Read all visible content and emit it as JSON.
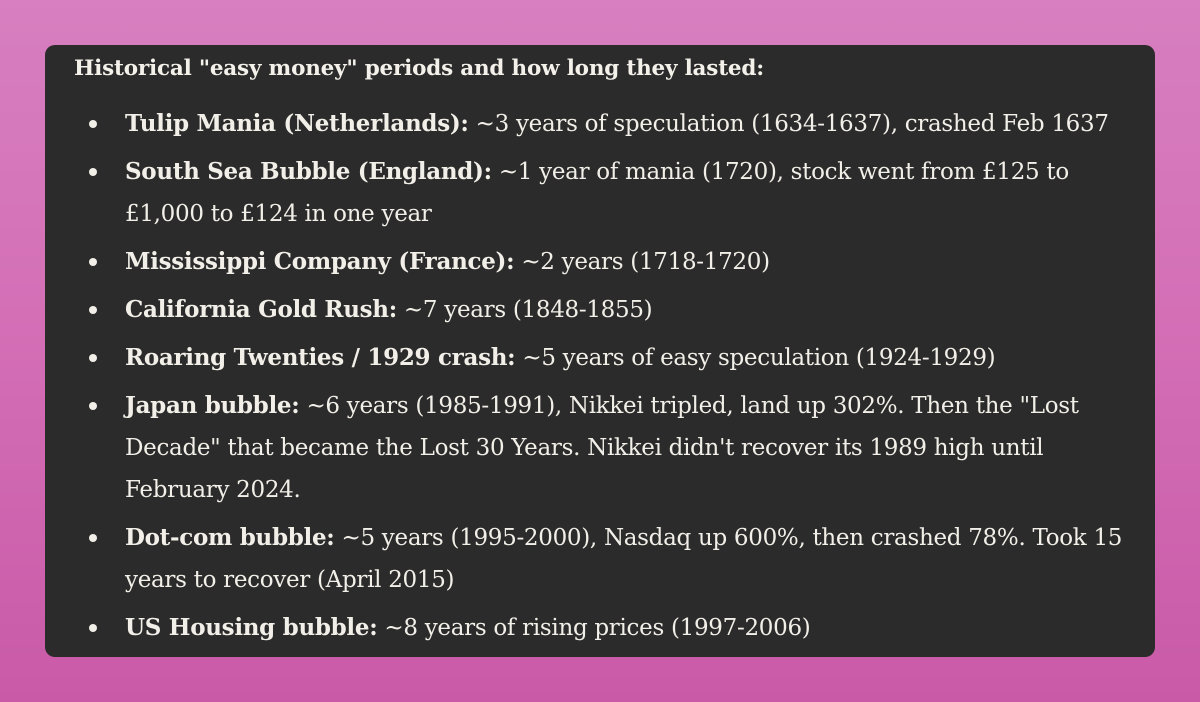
{
  "card": {
    "heading": "Historical \"easy money\" periods and how long they lasted:",
    "items": [
      {
        "label": "Tulip Mania (Netherlands):",
        "text": " ~3 years of speculation (1634-1637), crashed Feb 1637"
      },
      {
        "label": "South Sea Bubble (England):",
        "text": " ~1 year of mania (1720), stock went from £125 to £1,000 to £124 in one year"
      },
      {
        "label": "Mississippi Company (France):",
        "text": " ~2 years (1718-1720)"
      },
      {
        "label": "California Gold Rush:",
        "text": " ~7 years (1848-1855)"
      },
      {
        "label": "Roaring Twenties / 1929 crash:",
        "text": " ~5 years of easy speculation (1924-1929)"
      },
      {
        "label": "Japan bubble:",
        "text": " ~6 years (1985-1991), Nikkei tripled, land up 302%. Then the \"Lost Decade\" that became the Lost 30 Years. Nikkei didn't recover its 1989 high until February 2024."
      },
      {
        "label": "Dot-com bubble:",
        "text": " ~5 years (1995-2000), Nasdaq up 600%, then crashed 78%. Took 15 years to recover (April 2015)"
      },
      {
        "label": "US Housing bubble:",
        "text": " ~8 years of rising prices (1997-2006)"
      }
    ]
  },
  "colors": {
    "background_top": "#d77fc0",
    "background_bottom": "#c95aa8",
    "card_background": "#2b2b2b",
    "text": "#f2efe8"
  }
}
